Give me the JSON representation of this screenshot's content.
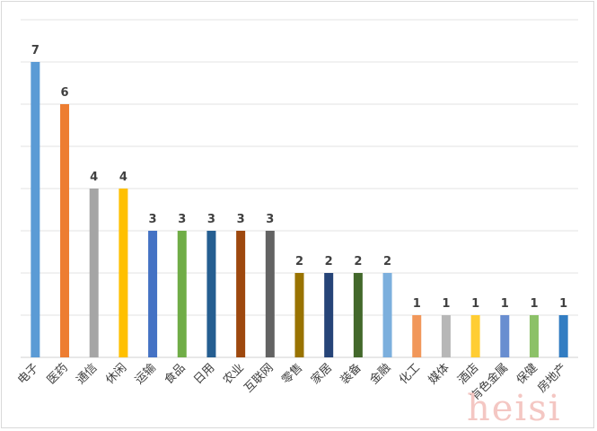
{
  "chart_data": {
    "type": "bar",
    "categories": [
      "电子",
      "医药",
      "通信",
      "休闲",
      "运输",
      "食品",
      "日用",
      "农业",
      "互联网",
      "零售",
      "家居",
      "装备",
      "金融",
      "化工",
      "媒体",
      "酒店",
      "有色金属",
      "保健",
      "房地产"
    ],
    "values": [
      7,
      6,
      4,
      4,
      3,
      3,
      3,
      3,
      3,
      2,
      2,
      2,
      2,
      1,
      1,
      1,
      1,
      1,
      1
    ],
    "colors": [
      "#5b9bd5",
      "#ed7d31",
      "#a5a5a5",
      "#ffc000",
      "#4472c4",
      "#70ad47",
      "#255e91",
      "#9e480e",
      "#636363",
      "#997300",
      "#264478",
      "#43682b",
      "#7cafdd",
      "#f1975a",
      "#b7b7b7",
      "#ffcd33",
      "#698ed0",
      "#8cc168",
      "#327dc2"
    ],
    "ylim": [
      0,
      8
    ],
    "grid": true,
    "legend": "none",
    "xlabel": "",
    "ylabel": ""
  },
  "watermark": "heisi"
}
